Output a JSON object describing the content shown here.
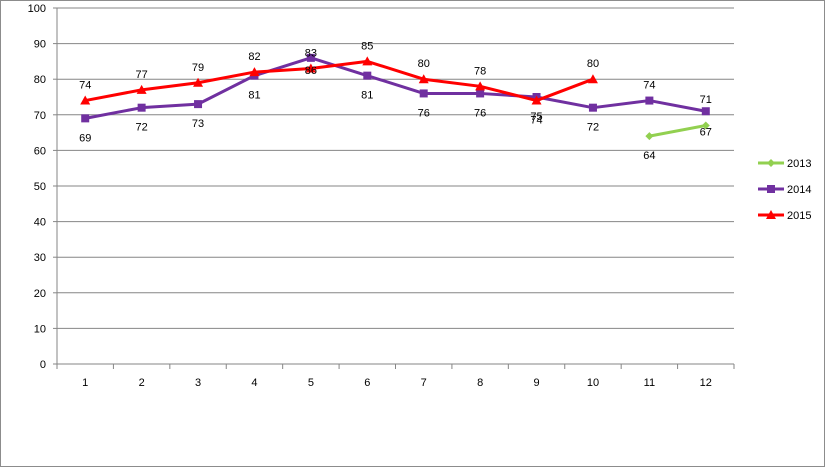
{
  "chart_data": {
    "type": "line",
    "x": [
      1,
      2,
      3,
      4,
      5,
      6,
      7,
      8,
      9,
      10,
      11,
      12
    ],
    "ylim": [
      0,
      100
    ],
    "yticks": [
      0,
      10,
      20,
      30,
      40,
      50,
      60,
      70,
      80,
      90,
      100
    ],
    "grid": true,
    "legend_position": "right",
    "series": [
      {
        "name": "2013",
        "color": "#92d050",
        "marker": "diamond",
        "values": [
          null,
          null,
          null,
          null,
          null,
          null,
          null,
          null,
          null,
          null,
          64,
          67
        ],
        "labels": [
          null,
          null,
          null,
          null,
          null,
          null,
          null,
          null,
          null,
          null,
          "64",
          "67"
        ]
      },
      {
        "name": "2014",
        "color": "#7030a0",
        "marker": "square",
        "values": [
          69,
          72,
          73,
          81,
          86,
          81,
          76,
          76,
          75,
          72,
          74,
          71
        ],
        "labels": [
          "69",
          "72",
          "73",
          "81",
          "86",
          "81",
          "76",
          "76",
          "75",
          "72",
          "74",
          "71"
        ]
      },
      {
        "name": "2015",
        "color": "#ff0000",
        "marker": "triangle",
        "values": [
          74,
          77,
          79,
          82,
          83,
          85,
          80,
          78,
          74,
          80,
          null,
          null
        ],
        "labels": [
          "74",
          "77",
          "79",
          "82",
          "83",
          "85",
          "80",
          "78",
          "74",
          "80",
          null,
          null
        ]
      }
    ]
  }
}
